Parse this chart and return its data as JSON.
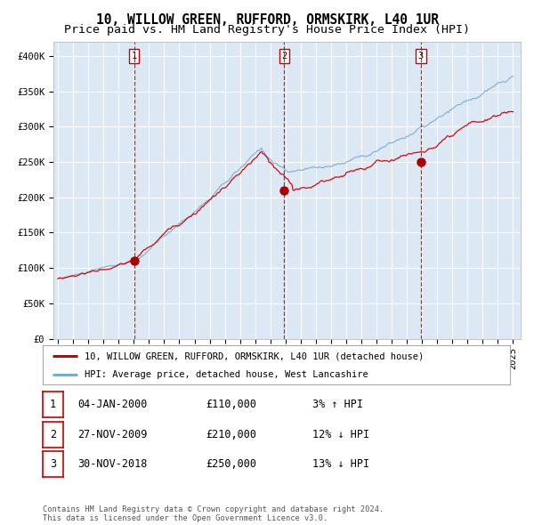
{
  "title": "10, WILLOW GREEN, RUFFORD, ORMSKIRK, L40 1UR",
  "subtitle": "Price paid vs. HM Land Registry's House Price Index (HPI)",
  "plot_bg_color": "#dce9f5",
  "ylim": [
    0,
    420000
  ],
  "yticks": [
    0,
    50000,
    100000,
    150000,
    200000,
    250000,
    300000,
    350000,
    400000
  ],
  "ytick_labels": [
    "£0",
    "£50K",
    "£100K",
    "£150K",
    "£200K",
    "£250K",
    "£300K",
    "£350K",
    "£400K"
  ],
  "xlim_start": 1994.7,
  "xlim_end": 2025.5,
  "xticks": [
    1995,
    1996,
    1997,
    1998,
    1999,
    2000,
    2001,
    2002,
    2003,
    2004,
    2005,
    2006,
    2007,
    2008,
    2009,
    2010,
    2011,
    2012,
    2013,
    2014,
    2015,
    2016,
    2017,
    2018,
    2019,
    2020,
    2021,
    2022,
    2023,
    2024,
    2025
  ],
  "red_line_color": "#cc0000",
  "blue_line_color": "#7aaacf",
  "marker_color": "#aa0000",
  "vline_color": "#cc0000",
  "transaction_dates": [
    2000.01,
    2009.91,
    2018.92
  ],
  "transaction_prices": [
    110000,
    210000,
    250000
  ],
  "transaction_labels": [
    "1",
    "2",
    "3"
  ],
  "legend_line1": "10, WILLOW GREEN, RUFFORD, ORMSKIRK, L40 1UR (detached house)",
  "legend_line2": "HPI: Average price, detached house, West Lancashire",
  "table_rows": [
    [
      "1",
      "04-JAN-2000",
      "£110,000",
      "3% ↑ HPI"
    ],
    [
      "2",
      "27-NOV-2009",
      "£210,000",
      "12% ↓ HPI"
    ],
    [
      "3",
      "30-NOV-2018",
      "£250,000",
      "13% ↓ HPI"
    ]
  ],
  "footnote": "Contains HM Land Registry data © Crown copyright and database right 2024.\nThis data is licensed under the Open Government Licence v3.0.",
  "title_fontsize": 10.5,
  "subtitle_fontsize": 9.5,
  "tick_fontsize": 7.5,
  "label_fontsize": 8.5
}
